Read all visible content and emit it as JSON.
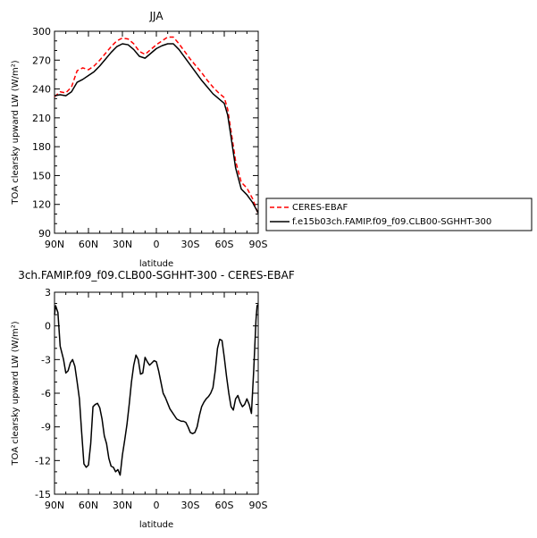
{
  "chart_data": [
    {
      "type": "line",
      "title": "JJA",
      "xlabel": "latitude",
      "ylabel": "TOA clearsky upward LW (W/m²)",
      "ylim": [
        90,
        300
      ],
      "xlim": [
        90,
        -90
      ],
      "x_ticks": [
        90,
        60,
        30,
        0,
        -30,
        -60,
        -90
      ],
      "x_tick_labels": [
        "90N",
        "60N",
        "30N",
        "0",
        "30S",
        "60S",
        "90S"
      ],
      "y_ticks": [
        90,
        120,
        150,
        180,
        210,
        240,
        270,
        300
      ],
      "y_tick_labels": [
        "90",
        "120",
        "150",
        "180",
        "210",
        "240",
        "270",
        "300"
      ],
      "legend_position": "right",
      "series": [
        {
          "name": "CERES-EBAF",
          "color": "#ff0000",
          "dash": true,
          "x": [
            90,
            85,
            80,
            75,
            70,
            65,
            60,
            55,
            50,
            45,
            40,
            35,
            30,
            25,
            20,
            15,
            10,
            5,
            0,
            -5,
            -10,
            -15,
            -20,
            -25,
            -30,
            -35,
            -40,
            -45,
            -50,
            -55,
            -60,
            -63,
            -66,
            -70,
            -75,
            -80,
            -85,
            -90
          ],
          "y": [
            232,
            237,
            236,
            242,
            259,
            262,
            260,
            264,
            270,
            277,
            284,
            290,
            293,
            292,
            287,
            279,
            276,
            281,
            286,
            290,
            294,
            294,
            287,
            279,
            271,
            264,
            257,
            249,
            242,
            236,
            231,
            219,
            196,
            165,
            143,
            137,
            126,
            110
          ]
        },
        {
          "name": "f.e15b03ch.FAMIP.f09_f09.CLB00-SGHHT-300",
          "color": "#000000",
          "dash": false,
          "x": [
            90,
            85,
            80,
            75,
            70,
            65,
            60,
            55,
            50,
            45,
            40,
            35,
            30,
            25,
            20,
            15,
            10,
            5,
            0,
            -5,
            -10,
            -15,
            -20,
            -25,
            -30,
            -35,
            -40,
            -45,
            -50,
            -55,
            -60,
            -63,
            -66,
            -70,
            -75,
            -80,
            -85,
            -90
          ],
          "y": [
            233,
            234,
            233,
            237,
            247,
            250,
            254,
            258,
            264,
            271,
            278,
            284,
            287,
            286,
            281,
            274,
            272,
            277,
            282,
            285,
            287,
            287,
            281,
            273,
            265,
            257,
            249,
            242,
            235,
            230,
            225,
            213,
            190,
            158,
            136,
            130,
            122,
            111
          ]
        }
      ]
    },
    {
      "type": "line",
      "title": "3ch.FAMIP.f09_f09.CLB00-SGHHT-300 - CERES-EBAF",
      "xlabel": "latitude",
      "ylabel": "TOA clearsky upward LW (W/m²)",
      "ylim": [
        -15,
        3
      ],
      "xlim": [
        90,
        -90
      ],
      "x_ticks": [
        90,
        60,
        30,
        0,
        -30,
        -60,
        -90
      ],
      "x_tick_labels": [
        "90N",
        "60N",
        "30N",
        "0",
        "30S",
        "60S",
        "90S"
      ],
      "y_ticks": [
        -15,
        -12,
        -9,
        -6,
        -3,
        0,
        3
      ],
      "y_tick_labels": [
        "-15",
        "-12",
        "-9",
        "-6",
        "-3",
        "0",
        "3"
      ],
      "series": [
        {
          "color": "#000000",
          "dash": false,
          "x": [
            90,
            89,
            87,
            85,
            82,
            80,
            78,
            76,
            74,
            72,
            70,
            68,
            66,
            64,
            62,
            60,
            58,
            56,
            54,
            52,
            50,
            48,
            46,
            44,
            42,
            40,
            38,
            36,
            34,
            32,
            30,
            28,
            26,
            24,
            22,
            20,
            18,
            16,
            14,
            12,
            10,
            8,
            6,
            4,
            2,
            0,
            -2,
            -4,
            -6,
            -8,
            -10,
            -12,
            -14,
            -16,
            -18,
            -20,
            -22,
            -24,
            -26,
            -28,
            -30,
            -32,
            -34,
            -36,
            -38,
            -40,
            -42,
            -44,
            -46,
            -48,
            -50,
            -52,
            -54,
            -56,
            -58,
            -60,
            -62,
            -64,
            -66,
            -68,
            -70,
            -72,
            -74,
            -76,
            -78,
            -80,
            -82,
            -84,
            -86,
            -88,
            -89,
            -90
          ],
          "y": [
            1.0,
            1.8,
            1.2,
            -1.8,
            -3.0,
            -4.2,
            -4.0,
            -3.3,
            -3.0,
            -3.6,
            -5.0,
            -6.5,
            -9.5,
            -12.3,
            -12.6,
            -12.4,
            -10.5,
            -7.2,
            -7.0,
            -6.9,
            -7.3,
            -8.3,
            -9.8,
            -10.5,
            -11.8,
            -12.5,
            -12.6,
            -13.0,
            -12.8,
            -13.3,
            -11.5,
            -10.2,
            -8.8,
            -7.0,
            -5.0,
            -3.5,
            -2.6,
            -3.0,
            -4.3,
            -4.2,
            -2.8,
            -3.2,
            -3.5,
            -3.3,
            -3.1,
            -3.2,
            -4.0,
            -5.0,
            -6.0,
            -6.4,
            -6.9,
            -7.4,
            -7.7,
            -8.0,
            -8.3,
            -8.4,
            -8.5,
            -8.5,
            -8.6,
            -9.0,
            -9.5,
            -9.6,
            -9.5,
            -9.0,
            -8.0,
            -7.2,
            -6.8,
            -6.5,
            -6.3,
            -6.0,
            -5.5,
            -4.0,
            -2.0,
            -1.2,
            -1.3,
            -2.8,
            -4.5,
            -6.0,
            -7.2,
            -7.5,
            -6.5,
            -6.2,
            -6.8,
            -7.2,
            -7.0,
            -6.5,
            -7.0,
            -7.8,
            -4.0,
            0.5,
            1.8,
            1.9
          ]
        }
      ]
    }
  ]
}
